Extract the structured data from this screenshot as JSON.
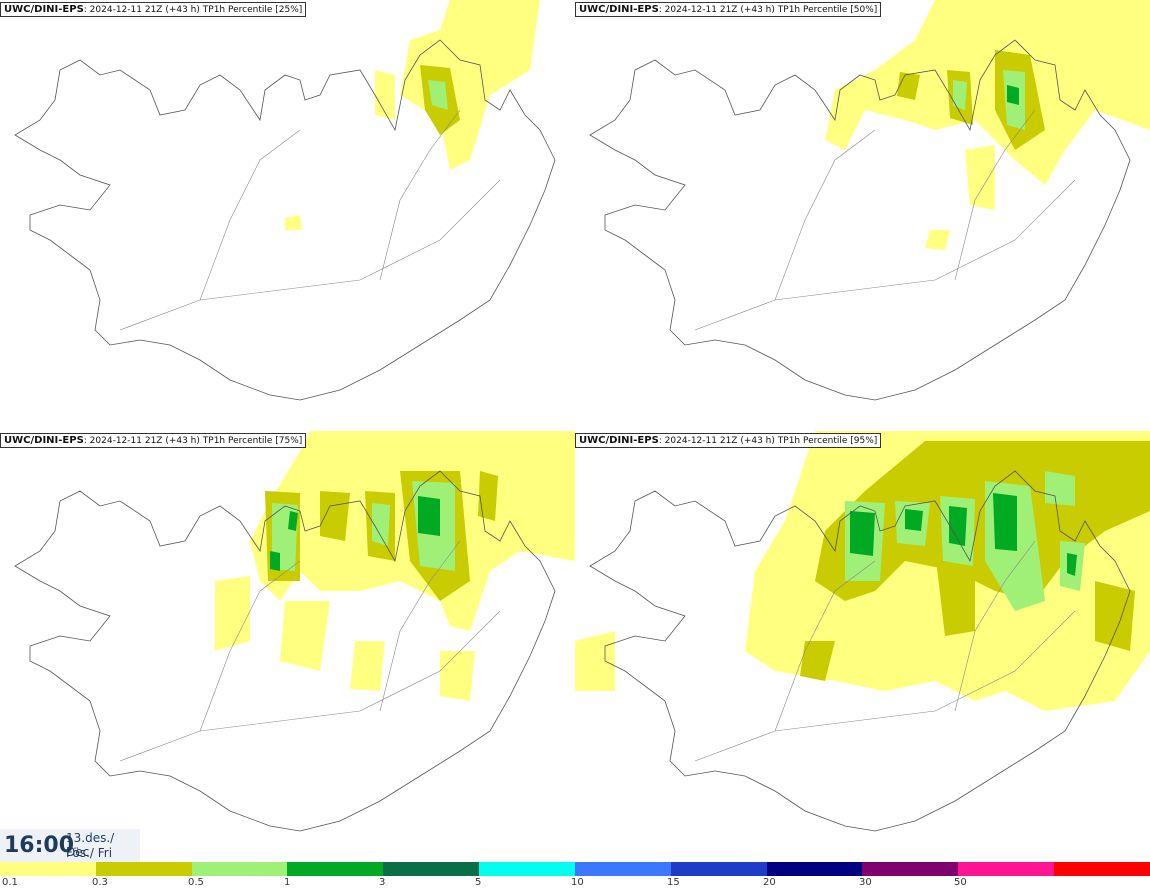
{
  "model": "UWC/DINI-EPS",
  "run": "2024-12-11 21Z (+43 h)",
  "panels": [
    {
      "percentile_label": "TP1h Percentile [25%]"
    },
    {
      "percentile_label": "TP1h Percentile [50%]"
    },
    {
      "percentile_label": "TP1h Percentile [75%]"
    },
    {
      "percentile_label": "TP1h Percentile [95%]"
    }
  ],
  "valid_time": {
    "time": "16:00",
    "date": "13.des./ Dec",
    "day": "Fös./ Fri"
  },
  "legend": {
    "colors": [
      "#ffff80",
      "#c8cc00",
      "#a0f078",
      "#00aa22",
      "#0a6e48",
      "#00ffee",
      "#3c78ff",
      "#1e3cc8",
      "#000080",
      "#800070",
      "#ff1493",
      "#ff0000"
    ],
    "labels": [
      "0.1",
      "0.3",
      "0.5",
      "1",
      "3",
      "5",
      "10",
      "15",
      "20",
      "30",
      "50"
    ]
  },
  "precip_colors": {
    "light": "#ffff80",
    "moderate": "#c8cc00",
    "heavy": "#a0f078",
    "very_heavy": "#00aa22"
  }
}
